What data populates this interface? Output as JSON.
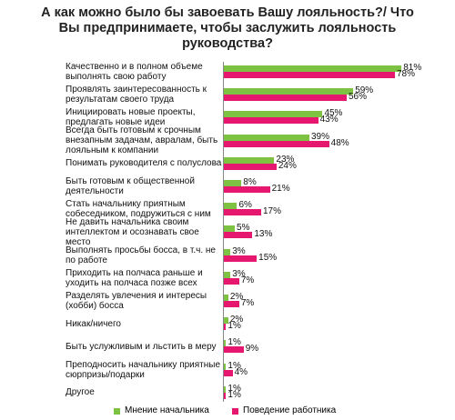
{
  "chart_data": {
    "type": "bar",
    "orientation": "horizontal",
    "title": "А как можно было бы завоевать Вашу лояльность?/ Что Вы предпринимаете, чтобы заслужить лояльность руководства?",
    "categories": [
      "Качественно и в полном объеме выполнять свою работу",
      "Проявлять заинтересованность к результатам своего труда",
      "Инициировать новые проекты, предлагать новые идеи",
      "Всегда быть готовым к срочным внезапным задачам, авралам, быть лояльным к компании",
      "Понимать руководителя с полуслова",
      "Быть готовым к общественной деятельности",
      "Стать начальнику приятным собеседником, подружиться с ним",
      "Не давить начальника своим интеллектом и осознавать свое место",
      "Выполнять просьбы босса, в т.ч. не по работе",
      "Приходить на полчаса раньше и уходить на полчаса позже всех",
      "Разделять увлечения и интересы (хобби) босса",
      "Никак/ничего",
      "Быть услужливым и льстить в меру",
      "Преподносить начальнику приятные сюрпризы/подарки",
      "Другое"
    ],
    "series": [
      {
        "name": "Мнение начальника",
        "color": "#7dc242",
        "values": [
          81,
          59,
          45,
          39,
          23,
          8,
          6,
          5,
          3,
          3,
          2,
          2,
          1,
          1,
          1
        ],
        "value_labels": [
          "81%",
          "59%",
          "45%",
          "39%",
          "23%",
          "8%",
          "6%",
          "5%",
          "3%",
          "3%",
          "2%",
          "2%",
          "1%",
          "1%",
          "1%"
        ]
      },
      {
        "name": "Поведение работника",
        "color": "#e6176e",
        "values": [
          78,
          56,
          43,
          48,
          24,
          21,
          17,
          13,
          15,
          7,
          7,
          1,
          9,
          4,
          1
        ],
        "value_labels": [
          "78%",
          "56%",
          "43%",
          "48%",
          "24%",
          "21%",
          "17%",
          "13%",
          "15%",
          "7%",
          "7%",
          "1%",
          "9%",
          "4%",
          "1%"
        ]
      }
    ],
    "xlim": [
      0,
      100
    ],
    "legend": "bottom"
  }
}
